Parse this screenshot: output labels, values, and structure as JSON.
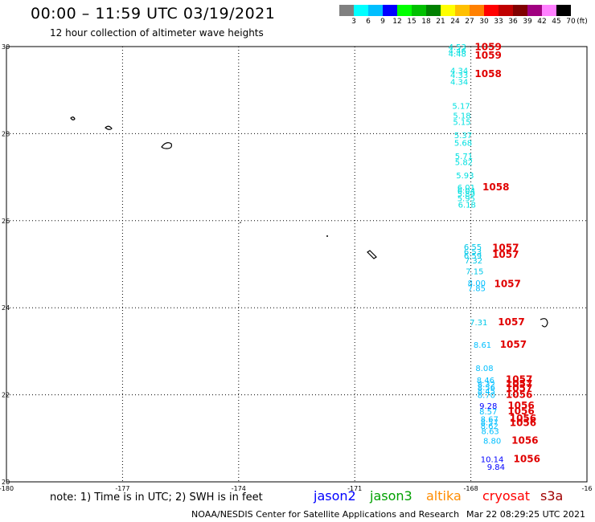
{
  "title": "00:00 – 11:59 UTC 03/19/2021",
  "subtitle": "12 hour collection of altimeter wave heights",
  "legend": {
    "colors": [
      "#808080",
      "#00ffff",
      "#00bfff",
      "#0000ff",
      "#00ff00",
      "#00c000",
      "#008000",
      "#ffff00",
      "#ffc000",
      "#ff8000",
      "#ff0000",
      "#c00000",
      "#800000",
      "#a00080",
      "#ff80ff",
      "#000000"
    ],
    "labels": [
      "3",
      "6",
      "9",
      "12",
      "15",
      "18",
      "21",
      "24",
      "27",
      "30",
      "33",
      "36",
      "39",
      "42",
      "45",
      "70",
      "(ft)"
    ]
  },
  "map": {
    "lon_range": [
      -180,
      -165
    ],
    "lat_range": [
      20,
      30
    ],
    "x_ticks": [
      "-180",
      "-177",
      "-174",
      "-171",
      "-168",
      "-16"
    ],
    "y_ticks": [
      "30",
      "28",
      "26",
      "24",
      "22",
      "20"
    ],
    "grid": "dotted"
  },
  "observations": [
    {
      "sat": "cryosat",
      "swh": "4.53",
      "lat": 29.93,
      "lon": -168.35,
      "color": "#00e0e0"
    },
    {
      "sat": "cryosat",
      "swh": "4.46",
      "lat": 29.83,
      "lon": -168.35,
      "color": "#00e0e0"
    },
    {
      "sat": "cryosat",
      "swh": "4.48",
      "lat": 29.77,
      "lon": -168.35,
      "color": "#00e0e0"
    },
    {
      "sat": "cryosat",
      "swh": "4.34",
      "lat": 29.38,
      "lon": -168.3,
      "color": "#00e0e0"
    },
    {
      "sat": "cryosat",
      "swh": "4.33",
      "lat": 29.28,
      "lon": -168.3,
      "color": "#00e0e0"
    },
    {
      "sat": "cryosat",
      "swh": "4.34",
      "lat": 29.12,
      "lon": -168.3,
      "color": "#00e0e0"
    },
    {
      "sat": "cryosat",
      "swh": "5.17",
      "lat": 28.57,
      "lon": -168.25,
      "color": "#00e0e0"
    },
    {
      "sat": "cryosat",
      "swh": "5.18",
      "lat": 28.35,
      "lon": -168.23,
      "color": "#00e0e0"
    },
    {
      "sat": "cryosat",
      "swh": "5.15",
      "lat": 28.2,
      "lon": -168.23,
      "color": "#00e0e0"
    },
    {
      "sat": "cryosat",
      "swh": "5.37",
      "lat": 27.9,
      "lon": -168.2,
      "color": "#00e0e0"
    },
    {
      "sat": "cryosat",
      "swh": "5.68",
      "lat": 27.72,
      "lon": -168.2,
      "color": "#00e0e0"
    },
    {
      "sat": "cryosat",
      "swh": "5.71",
      "lat": 27.42,
      "lon": -168.18,
      "color": "#00e0e0"
    },
    {
      "sat": "cryosat",
      "swh": "5.82",
      "lat": 27.28,
      "lon": -168.18,
      "color": "#00e0e0"
    },
    {
      "sat": "cryosat",
      "swh": "5.93",
      "lat": 26.97,
      "lon": -168.15,
      "color": "#00e0e0"
    },
    {
      "sat": "cryosat",
      "swh": "6.01",
      "lat": 26.7,
      "lon": -168.12,
      "color": "#00e0e0"
    },
    {
      "sat": "cryosat",
      "swh": "6.04",
      "lat": 26.62,
      "lon": -168.12,
      "color": "#00e0e0"
    },
    {
      "sat": "cryosat",
      "swh": "5.89",
      "lat": 26.55,
      "lon": -168.12,
      "color": "#00e0e0"
    },
    {
      "sat": "cryosat",
      "swh": "5.95",
      "lat": 26.45,
      "lon": -168.12,
      "color": "#00e0e0"
    },
    {
      "sat": "cryosat",
      "swh": "6.18",
      "lat": 26.3,
      "lon": -168.1,
      "color": "#00e0e0"
    },
    {
      "sat": "cryosat",
      "swh": "6.55",
      "lat": 25.33,
      "lon": -167.95,
      "color": "#00c8e8"
    },
    {
      "sat": "cryosat",
      "swh": "6.53",
      "lat": 25.22,
      "lon": -167.95,
      "color": "#00c8e8"
    },
    {
      "sat": "cryosat",
      "swh": "6.59",
      "lat": 25.13,
      "lon": -167.95,
      "color": "#00c8e8"
    },
    {
      "sat": "cryosat",
      "swh": "7.32",
      "lat": 25.02,
      "lon": -167.93,
      "color": "#00c8e8"
    },
    {
      "sat": "cryosat",
      "swh": "7.15",
      "lat": 24.77,
      "lon": -167.9,
      "color": "#00c8e8"
    },
    {
      "sat": "cryosat",
      "swh": "8.00",
      "lat": 24.5,
      "lon": -167.85,
      "color": "#00bfff"
    },
    {
      "sat": "cryosat",
      "swh": "7.85",
      "lat": 24.38,
      "lon": -167.85,
      "color": "#00bfff"
    },
    {
      "sat": "cryosat",
      "swh": "7.31",
      "lat": 23.6,
      "lon": -167.8,
      "color": "#00c8e8"
    },
    {
      "sat": "cryosat",
      "swh": "8.61",
      "lat": 23.08,
      "lon": -167.7,
      "color": "#00bfff"
    },
    {
      "sat": "cryosat",
      "swh": "8.08",
      "lat": 22.55,
      "lon": -167.65,
      "color": "#00bfff"
    },
    {
      "sat": "cryosat",
      "swh": "8.46",
      "lat": 22.27,
      "lon": -167.62,
      "color": "#00bfff"
    },
    {
      "sat": "cryosat",
      "swh": "8.32",
      "lat": 22.18,
      "lon": -167.6,
      "color": "#00bfff"
    },
    {
      "sat": "cryosat",
      "swh": "8.56",
      "lat": 22.1,
      "lon": -167.6,
      "color": "#00bfff"
    },
    {
      "sat": "cryosat",
      "swh": "8.45",
      "lat": 22.02,
      "lon": -167.6,
      "color": "#00bfff"
    },
    {
      "sat": "cryosat",
      "swh": "8.70",
      "lat": 21.93,
      "lon": -167.6,
      "color": "#00bfff"
    },
    {
      "sat": "cryosat",
      "swh": "9.28",
      "lat": 21.68,
      "lon": -167.55,
      "color": "#0000ff"
    },
    {
      "sat": "cryosat",
      "swh": "8.57",
      "lat": 21.55,
      "lon": -167.55,
      "color": "#00bfff"
    },
    {
      "sat": "cryosat",
      "swh": "8.67",
      "lat": 21.37,
      "lon": -167.52,
      "color": "#00bfff"
    },
    {
      "sat": "cryosat",
      "swh": "8.57",
      "lat": 21.3,
      "lon": -167.52,
      "color": "#00bfff"
    },
    {
      "sat": "cryosat",
      "swh": "8.62",
      "lat": 21.22,
      "lon": -167.52,
      "color": "#00bfff"
    },
    {
      "sat": "cryosat",
      "swh": "8.63",
      "lat": 21.1,
      "lon": -167.5,
      "color": "#00bfff"
    },
    {
      "sat": "cryosat",
      "swh": "8.80",
      "lat": 20.88,
      "lon": -167.45,
      "color": "#00bfff"
    },
    {
      "sat": "cryosat",
      "swh": "10.14",
      "lat": 20.45,
      "lon": -167.45,
      "color": "#0000ff"
    },
    {
      "sat": "cryosat",
      "swh": "9.84",
      "lat": 20.28,
      "lon": -167.35,
      "color": "#0000ff"
    }
  ],
  "time_labels": [
    {
      "text": "1059",
      "lat": 29.92,
      "lon": -167.9
    },
    {
      "text": "1059",
      "lat": 29.72,
      "lon": -167.9
    },
    {
      "text": "1058",
      "lat": 29.3,
      "lon": -167.9
    },
    {
      "text": "1058",
      "lat": 26.7,
      "lon": -167.7
    },
    {
      "text": "1057",
      "lat": 25.3,
      "lon": -167.45
    },
    {
      "text": "1057",
      "lat": 25.15,
      "lon": -167.45
    },
    {
      "text": "1057",
      "lat": 24.47,
      "lon": -167.4
    },
    {
      "text": "1057",
      "lat": 23.6,
      "lon": -167.3
    },
    {
      "text": "1057",
      "lat": 23.08,
      "lon": -167.25
    },
    {
      "text": "1057",
      "lat": 22.28,
      "lon": -167.1
    },
    {
      "text": "1057",
      "lat": 22.18,
      "lon": -167.1
    },
    {
      "text": "1057",
      "lat": 22.08,
      "lon": -167.1
    },
    {
      "text": "1056",
      "lat": 21.93,
      "lon": -167.1
    },
    {
      "text": "1056",
      "lat": 21.68,
      "lon": -167.05
    },
    {
      "text": "1056",
      "lat": 21.55,
      "lon": -167.05
    },
    {
      "text": "1056",
      "lat": 21.38,
      "lon": -167.0
    },
    {
      "text": "1056",
      "lat": 21.28,
      "lon": -167.0
    },
    {
      "text": "1056",
      "lat": 20.88,
      "lon": -166.95
    },
    {
      "text": "1056",
      "lat": 20.45,
      "lon": -166.9
    }
  ],
  "note": "note: 1) Time is in UTC; 2) SWH is in feet",
  "satellites": [
    {
      "name": "jason2",
      "color": "#0000ff"
    },
    {
      "name": "jason3",
      "color": "#00a000"
    },
    {
      "name": "altika",
      "color": "#ff8c00"
    },
    {
      "name": "cryosat",
      "color": "#ff0000"
    },
    {
      "name": "s3a",
      "color": "#a00000"
    }
  ],
  "credit": "NOAA/NESDIS Center for Satellite Applications and Research",
  "timestamp": "Mar 22 08:29:25 UTC 2021"
}
